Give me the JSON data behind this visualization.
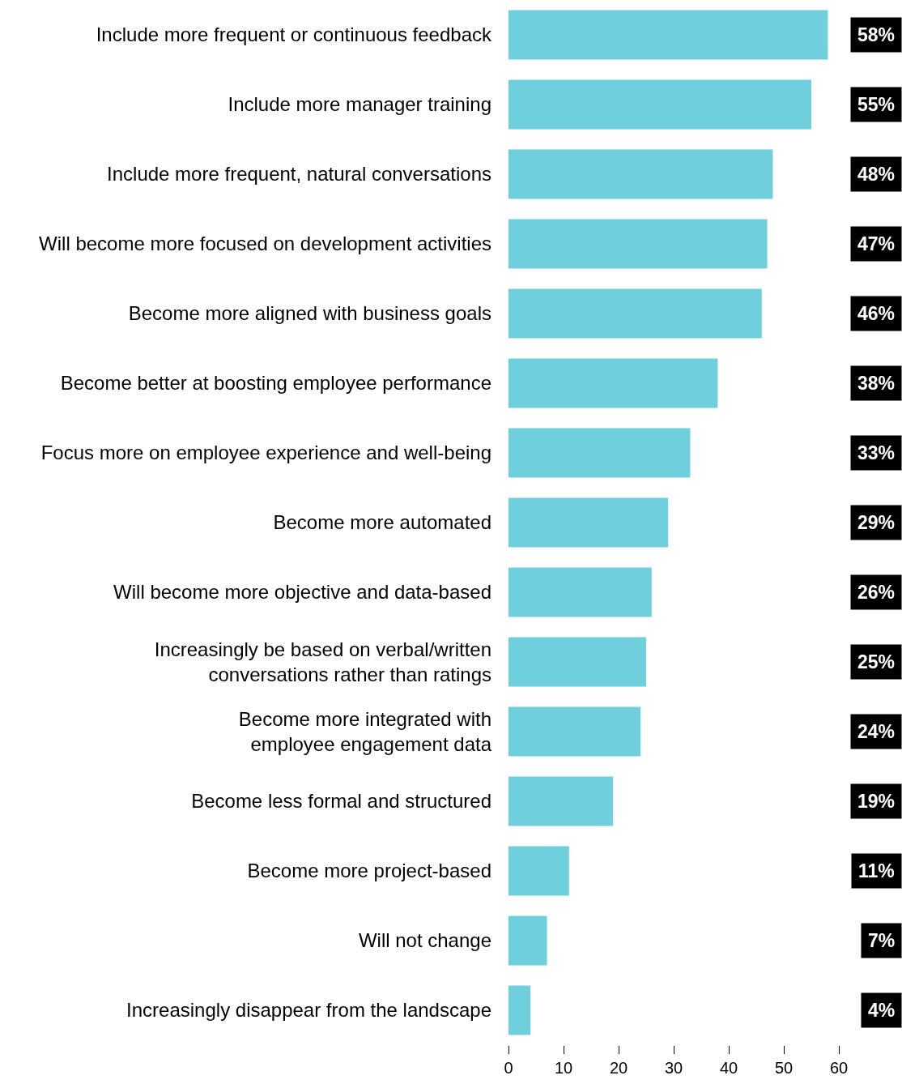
{
  "chart_data": {
    "type": "bar",
    "orientation": "horizontal",
    "categories": [
      "Include more frequent or continuous feedback",
      "Include more manager training",
      "Include more frequent, natural conversations",
      "Will become more focused on development activities",
      "Become more aligned with business goals",
      "Become better at boosting employee performance",
      "Focus more on employee experience and well-being",
      "Become more automated",
      "Will become more objective and data-based",
      "Increasingly be based on verbal/written\nconversations rather than ratings",
      "Become more integrated with\nemployee engagement data",
      "Become less formal and structured",
      "Become more project-based",
      "Will not change",
      "Increasingly disappear from the landscape"
    ],
    "values": [
      58,
      55,
      48,
      47,
      46,
      38,
      33,
      29,
      26,
      25,
      24,
      19,
      11,
      7,
      4
    ],
    "value_labels": [
      "58%",
      "55%",
      "48%",
      "47%",
      "46%",
      "38%",
      "33%",
      "29%",
      "26%",
      "25%",
      "24%",
      "19%",
      "11%",
      "7%",
      "4%"
    ],
    "color": "#6fcfdd",
    "xlim": [
      0,
      60
    ],
    "xticks": [
      0,
      10,
      20,
      30,
      40,
      50,
      60
    ],
    "legend": false
  }
}
